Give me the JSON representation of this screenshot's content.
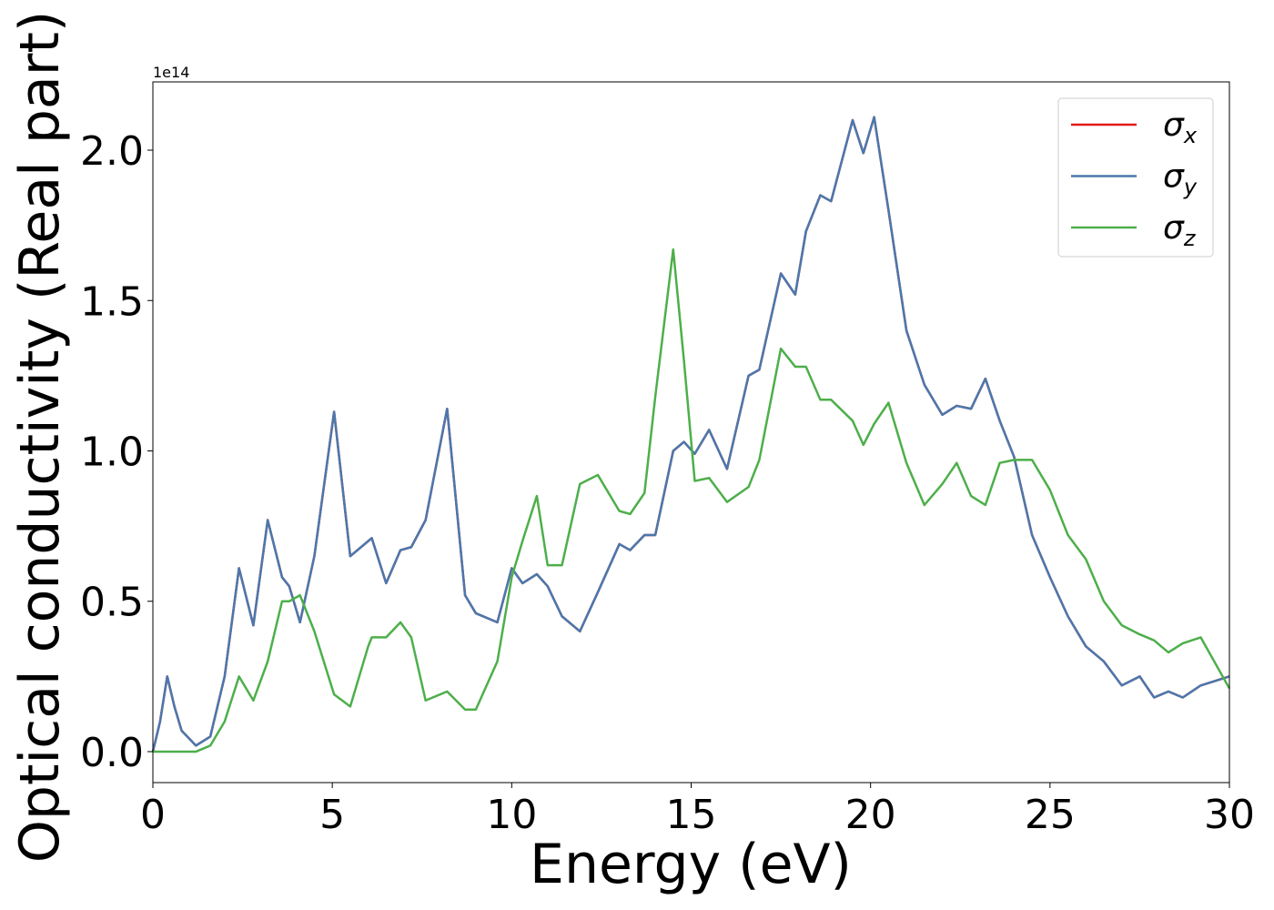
{
  "chart_data": {
    "type": "line",
    "x_label": "Energy (eV)",
    "y_label": "Optical conductivity (Real part)",
    "y_offset_label": "1e14",
    "xlim": [
      0,
      30
    ],
    "ylim": [
      -0.103,
      2.227
    ],
    "xticks": [
      0,
      5,
      10,
      15,
      20,
      25,
      30
    ],
    "yticks": [
      {
        "value": 0,
        "label": "0.0"
      },
      {
        "value": 0.5,
        "label": "0.5"
      },
      {
        "value": 1,
        "label": "1.0"
      },
      {
        "value": 1.5,
        "label": "1.5"
      },
      {
        "value": 2,
        "label": "2.0"
      }
    ],
    "legend": "upper right",
    "x": [
      0,
      0.2,
      0.4,
      0.6,
      0.8,
      1.2,
      1.6,
      2.0,
      2.4,
      2.8,
      3.2,
      3.6,
      3.8,
      4.1,
      4.5,
      5.05,
      5.5,
      6.0,
      6.1,
      6.5,
      6.9,
      7.2,
      7.6,
      8.2,
      8.7,
      9.0,
      9.6,
      10.0,
      10.3,
      10.7,
      11.0,
      11.4,
      11.9,
      12.4,
      13.0,
      13.3,
      13.7,
      14.0,
      14.5,
      14.8,
      15.1,
      15.5,
      16.0,
      16.6,
      16.9,
      17.5,
      17.9,
      18.2,
      18.6,
      18.9,
      19.5,
      19.8,
      20.1,
      20.5,
      21.0,
      21.5,
      22.0,
      22.4,
      22.8,
      23.2,
      23.6,
      24.0,
      24.5,
      25.0,
      25.5,
      26.0,
      26.5,
      27.0,
      27.5,
      27.9,
      28.3,
      28.7,
      29.2,
      30
    ],
    "series": [
      {
        "name": "σx",
        "color": "#e41a1c",
        "values": [
          0,
          0.1,
          0.25,
          0.15,
          0.07,
          0.02,
          0.05,
          0.25,
          0.61,
          0.42,
          0.77,
          0.58,
          0.55,
          0.43,
          0.65,
          1.13,
          0.65,
          0.7,
          0.71,
          0.56,
          0.67,
          0.68,
          0.77,
          1.14,
          0.52,
          0.46,
          0.43,
          0.61,
          0.56,
          0.59,
          0.55,
          0.45,
          0.4,
          0.53,
          0.69,
          0.67,
          0.72,
          0.72,
          1.0,
          1.03,
          0.99,
          1.07,
          0.94,
          1.25,
          1.27,
          1.59,
          1.52,
          1.73,
          1.85,
          1.83,
          2.1,
          1.99,
          2.11,
          1.8,
          1.4,
          1.22,
          1.12,
          1.15,
          1.14,
          1.24,
          1.1,
          0.98,
          0.72,
          0.58,
          0.45,
          0.35,
          0.3,
          0.22,
          0.25,
          0.18,
          0.2,
          0.18,
          0.22,
          0.25
        ]
      },
      {
        "name": "σy",
        "color": "#4a78ad",
        "values": [
          0,
          0.1,
          0.25,
          0.15,
          0.07,
          0.02,
          0.05,
          0.25,
          0.61,
          0.42,
          0.77,
          0.58,
          0.55,
          0.43,
          0.65,
          1.13,
          0.65,
          0.7,
          0.71,
          0.56,
          0.67,
          0.68,
          0.77,
          1.14,
          0.52,
          0.46,
          0.43,
          0.61,
          0.56,
          0.59,
          0.55,
          0.45,
          0.4,
          0.53,
          0.69,
          0.67,
          0.72,
          0.72,
          1.0,
          1.03,
          0.99,
          1.07,
          0.94,
          1.25,
          1.27,
          1.59,
          1.52,
          1.73,
          1.85,
          1.83,
          2.1,
          1.99,
          2.11,
          1.8,
          1.4,
          1.22,
          1.12,
          1.15,
          1.14,
          1.24,
          1.1,
          0.98,
          0.72,
          0.58,
          0.45,
          0.35,
          0.3,
          0.22,
          0.25,
          0.18,
          0.2,
          0.18,
          0.22,
          0.25
        ]
      },
      {
        "name": "σz",
        "color": "#4daf4a",
        "values": [
          0,
          0,
          0,
          0,
          0,
          0,
          0.02,
          0.1,
          0.25,
          0.17,
          0.3,
          0.5,
          0.5,
          0.52,
          0.4,
          0.19,
          0.15,
          0.35,
          0.38,
          0.38,
          0.43,
          0.38,
          0.17,
          0.2,
          0.14,
          0.14,
          0.3,
          0.58,
          0.7,
          0.85,
          0.62,
          0.62,
          0.89,
          0.92,
          0.8,
          0.79,
          0.86,
          1.18,
          1.67,
          1.3,
          0.9,
          0.91,
          0.83,
          0.88,
          0.97,
          1.34,
          1.28,
          1.28,
          1.17,
          1.17,
          1.1,
          1.02,
          1.09,
          1.16,
          0.96,
          0.82,
          0.89,
          0.96,
          0.85,
          0.82,
          0.96,
          0.97,
          0.97,
          0.87,
          0.72,
          0.64,
          0.5,
          0.42,
          0.39,
          0.37,
          0.33,
          0.36,
          0.38,
          0.21
        ]
      }
    ]
  }
}
